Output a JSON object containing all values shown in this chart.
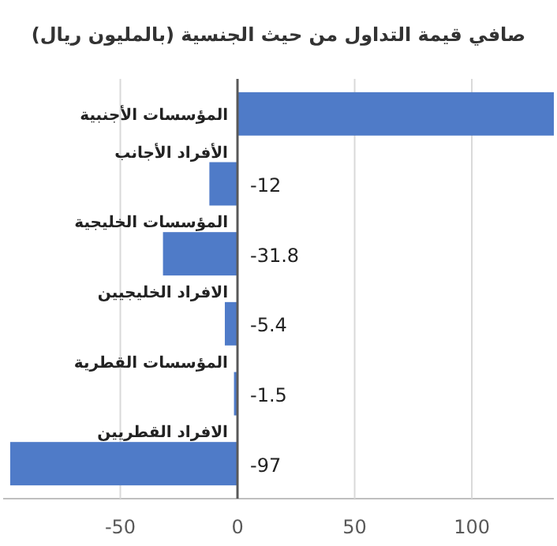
{
  "chart_data": {
    "type": "bar",
    "orientation": "horizontal",
    "title": "صافي قيمة التداول من حيث الجنسية (بالمليون ريال)",
    "categories": [
      "المؤسسات الأجنبية",
      "الأفراد الأجانب",
      "المؤسسات الخليجية",
      "الافراد الخليجيين",
      "المؤسسات القطرية",
      "الافراد القطريين"
    ],
    "values": [
      135,
      -12,
      -31.8,
      -5.4,
      -1.5,
      -97
    ],
    "value_labels": [
      null,
      "-12",
      "-31.8",
      "-5.4",
      "-1.5",
      "-97"
    ],
    "color": "#4f7bc8",
    "xlim": [
      -100,
      135
    ],
    "xticks": [
      -50,
      0,
      50,
      100
    ],
    "grid": "x"
  }
}
